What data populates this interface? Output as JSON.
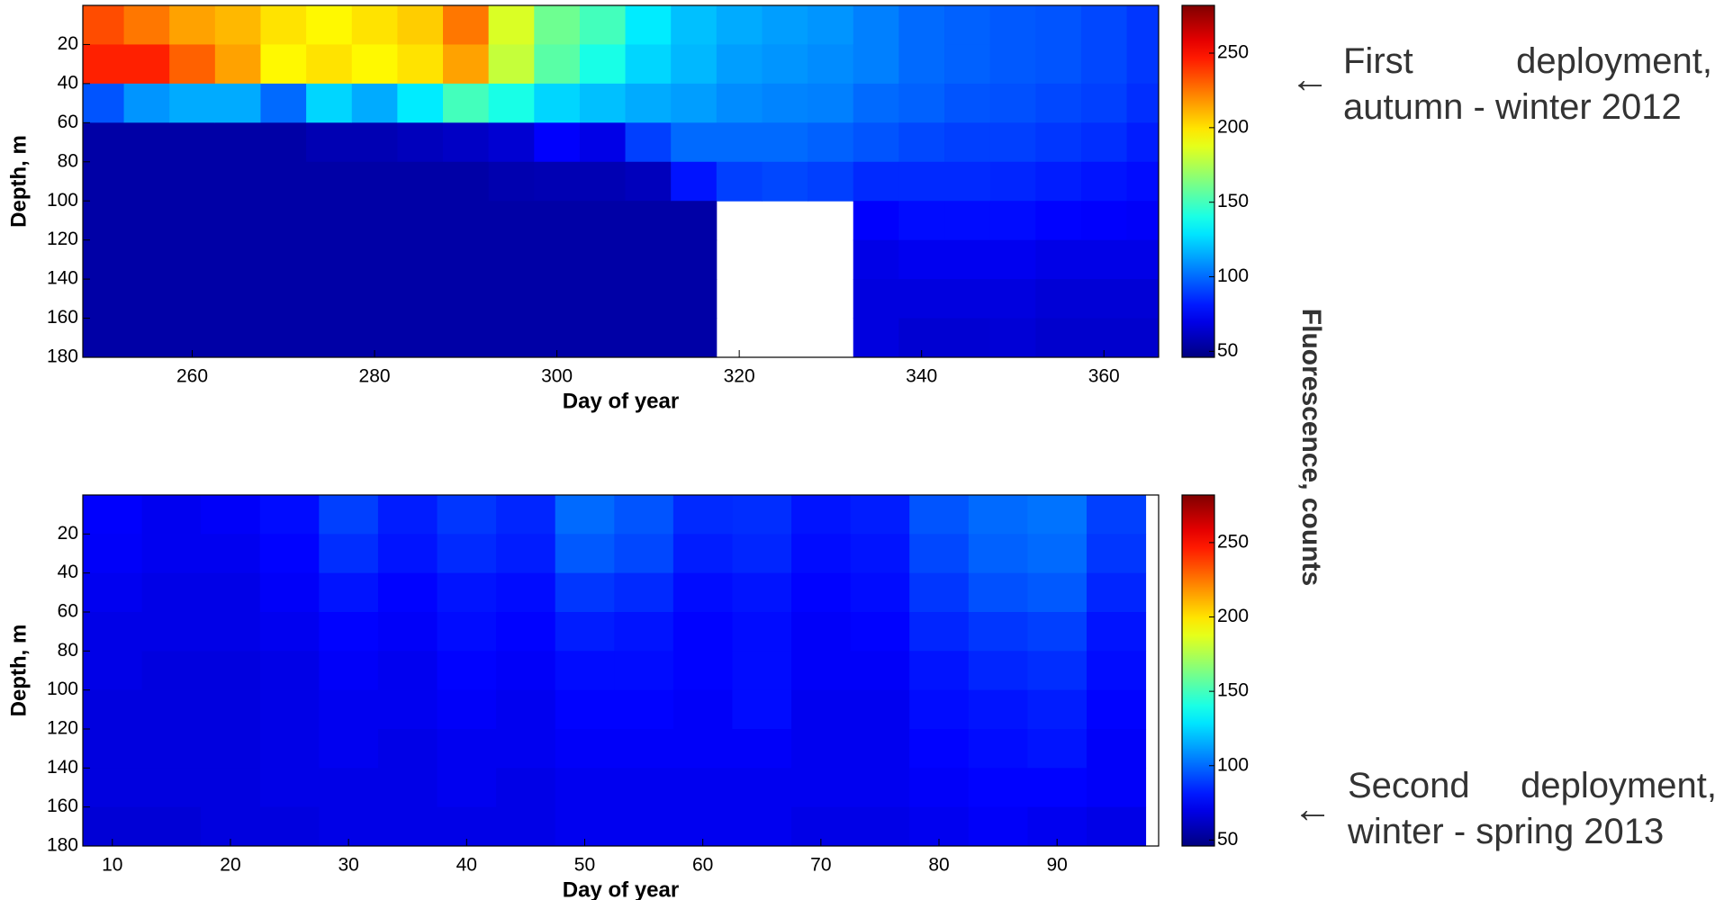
{
  "chart_data": [
    {
      "type": "heatmap",
      "colormap": "jet",
      "ylabel": "Depth, m",
      "xlabel": "Day of year",
      "colorbar_label": "Fluorescence, counts",
      "annotation": "First deployment, autumn - winter 2012",
      "xlim": [
        248,
        366
      ],
      "xticks": [
        260,
        280,
        300,
        320,
        340,
        360
      ],
      "ylim": [
        0,
        180
      ],
      "yreverse": true,
      "yticks": [
        20,
        40,
        60,
        80,
        100,
        120,
        140,
        160,
        180
      ],
      "zlim": [
        46,
        282
      ],
      "zticks": [
        50,
        100,
        150,
        200,
        250
      ],
      "x": [
        250,
        255,
        260,
        265,
        270,
        275,
        280,
        285,
        290,
        295,
        300,
        305,
        310,
        315,
        320,
        325,
        330,
        335,
        340,
        345,
        350,
        355,
        360,
        365
      ],
      "y": [
        10,
        30,
        50,
        70,
        90,
        110,
        130,
        150,
        170
      ],
      "z": [
        [
          235,
          245,
          95,
          55,
          55,
          55,
          55,
          55,
          55
        ],
        [
          225,
          245,
          110,
          55,
          55,
          55,
          55,
          55,
          55
        ],
        [
          215,
          230,
          115,
          55,
          55,
          55,
          55,
          55,
          55
        ],
        [
          210,
          215,
          115,
          55,
          55,
          55,
          55,
          55,
          55
        ],
        [
          200,
          195,
          100,
          55,
          55,
          55,
          55,
          55,
          55
        ],
        [
          195,
          200,
          125,
          58,
          55,
          55,
          55,
          55,
          55
        ],
        [
          200,
          195,
          115,
          58,
          55,
          55,
          55,
          55,
          55
        ],
        [
          205,
          200,
          130,
          60,
          55,
          55,
          55,
          55,
          55
        ],
        [
          225,
          215,
          150,
          62,
          55,
          55,
          55,
          55,
          55
        ],
        [
          185,
          180,
          140,
          65,
          57,
          55,
          55,
          55,
          55
        ],
        [
          160,
          155,
          125,
          75,
          58,
          55,
          55,
          55,
          55
        ],
        [
          150,
          140,
          120,
          70,
          58,
          55,
          55,
          55,
          55
        ],
        [
          130,
          125,
          115,
          90,
          60,
          55,
          55,
          55,
          55
        ],
        [
          120,
          118,
          112,
          100,
          80,
          55,
          55,
          55,
          55
        ],
        [
          115,
          112,
          108,
          100,
          90,
          null,
          null,
          null,
          null
        ],
        [
          112,
          110,
          106,
          100,
          92,
          null,
          null,
          null,
          null
        ],
        [
          110,
          108,
          105,
          98,
          90,
          null,
          null,
          null,
          null
        ],
        [
          105,
          105,
          100,
          95,
          85,
          75,
          70,
          68,
          68
        ],
        [
          100,
          100,
          98,
          92,
          85,
          78,
          72,
          68,
          65
        ],
        [
          98,
          98,
          95,
          90,
          85,
          78,
          72,
          68,
          65
        ],
        [
          96,
          96,
          94,
          90,
          84,
          78,
          72,
          68,
          66
        ],
        [
          95,
          95,
          92,
          88,
          82,
          76,
          70,
          66,
          64
        ],
        [
          92,
          92,
          90,
          86,
          80,
          75,
          70,
          66,
          64
        ],
        [
          88,
          88,
          86,
          82,
          78,
          74,
          70,
          66,
          64
        ]
      ]
    },
    {
      "type": "heatmap",
      "colormap": "jet",
      "ylabel": "Depth, m",
      "xlabel": "Day of year",
      "annotation": "Second deployment, winter - spring 2013",
      "xlim": [
        7.5,
        98.6
      ],
      "xticks": [
        10,
        20,
        30,
        40,
        50,
        60,
        70,
        80,
        90
      ],
      "ylim": [
        0,
        180
      ],
      "yreverse": true,
      "yticks": [
        20,
        40,
        60,
        80,
        100,
        120,
        140,
        160,
        180
      ],
      "zlim": [
        46,
        282
      ],
      "zticks": [
        50,
        100,
        150,
        200,
        250
      ],
      "x": [
        10,
        15,
        20,
        25,
        30,
        35,
        40,
        45,
        50,
        55,
        60,
        65,
        70,
        75,
        80,
        85,
        90,
        95
      ],
      "y": [
        10,
        30,
        50,
        70,
        90,
        110,
        130,
        150,
        170
      ],
      "z": [
        [
          75,
          74,
          72,
          70,
          70,
          68,
          68,
          68,
          66
        ],
        [
          72,
          72,
          70,
          70,
          68,
          68,
          68,
          68,
          66
        ],
        [
          74,
          72,
          70,
          70,
          68,
          68,
          68,
          68,
          68
        ],
        [
          78,
          76,
          74,
          72,
          70,
          70,
          70,
          70,
          68
        ],
        [
          90,
          86,
          80,
          76,
          74,
          72,
          72,
          70,
          70
        ],
        [
          82,
          80,
          76,
          74,
          72,
          72,
          70,
          70,
          70
        ],
        [
          88,
          85,
          80,
          78,
          76,
          74,
          72,
          72,
          70
        ],
        [
          84,
          82,
          78,
          76,
          74,
          72,
          72,
          70,
          70
        ],
        [
          100,
          96,
          88,
          82,
          78,
          76,
          74,
          72,
          72
        ],
        [
          95,
          92,
          85,
          80,
          78,
          76,
          74,
          72,
          72
        ],
        [
          85,
          82,
          78,
          76,
          76,
          74,
          74,
          72,
          72
        ],
        [
          86,
          84,
          80,
          78,
          78,
          78,
          74,
          72,
          72
        ],
        [
          80,
          78,
          76,
          74,
          74,
          72,
          72,
          72,
          70
        ],
        [
          82,
          80,
          78,
          76,
          74,
          72,
          72,
          72,
          70
        ],
        [
          95,
          92,
          88,
          84,
          80,
          78,
          76,
          74,
          72
        ],
        [
          100,
          98,
          94,
          88,
          84,
          80,
          78,
          76,
          74
        ],
        [
          102,
          100,
          96,
          90,
          86,
          82,
          80,
          76,
          72
        ],
        [
          90,
          88,
          84,
          80,
          78,
          76,
          74,
          74,
          70
        ]
      ]
    }
  ]
}
